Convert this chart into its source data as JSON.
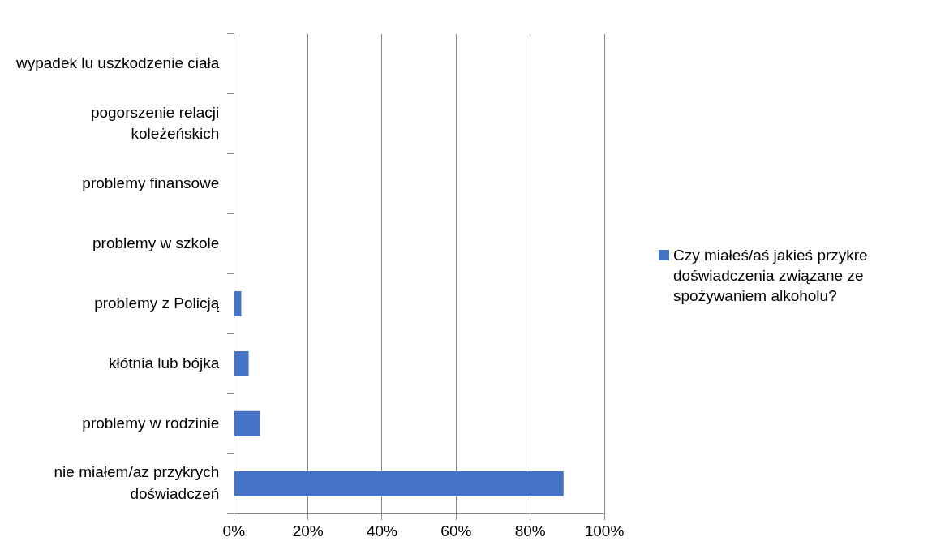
{
  "chart_data": {
    "type": "bar",
    "orientation": "horizontal",
    "categories": [
      "wypadek lu uszkodzenie ciała",
      "pogorszenie relacji\nkoleżeńskich",
      "problemy finansowe",
      "problemy w szkole",
      "problemy z Policją",
      "kłótnia lub bójka",
      "problemy w rodzinie",
      "nie miałem/az przykrych\ndoświadczeń"
    ],
    "series": [
      {
        "name": "Czy miałeś/aś jakieś przykre doświadczenia związane ze spożywaniem alkoholu?",
        "color": "#4472c4",
        "values": [
          0,
          0,
          0,
          0,
          2,
          4,
          7,
          89
        ]
      }
    ],
    "xlim": [
      0,
      100
    ],
    "xticks": [
      {
        "value": 0,
        "label": "0%"
      },
      {
        "value": 20,
        "label": "20%"
      },
      {
        "value": 40,
        "label": "40%"
      },
      {
        "value": 60,
        "label": "60%"
      },
      {
        "value": 80,
        "label": "80%"
      },
      {
        "value": 100,
        "label": "100%"
      }
    ],
    "grid": "x",
    "legend": "right"
  }
}
